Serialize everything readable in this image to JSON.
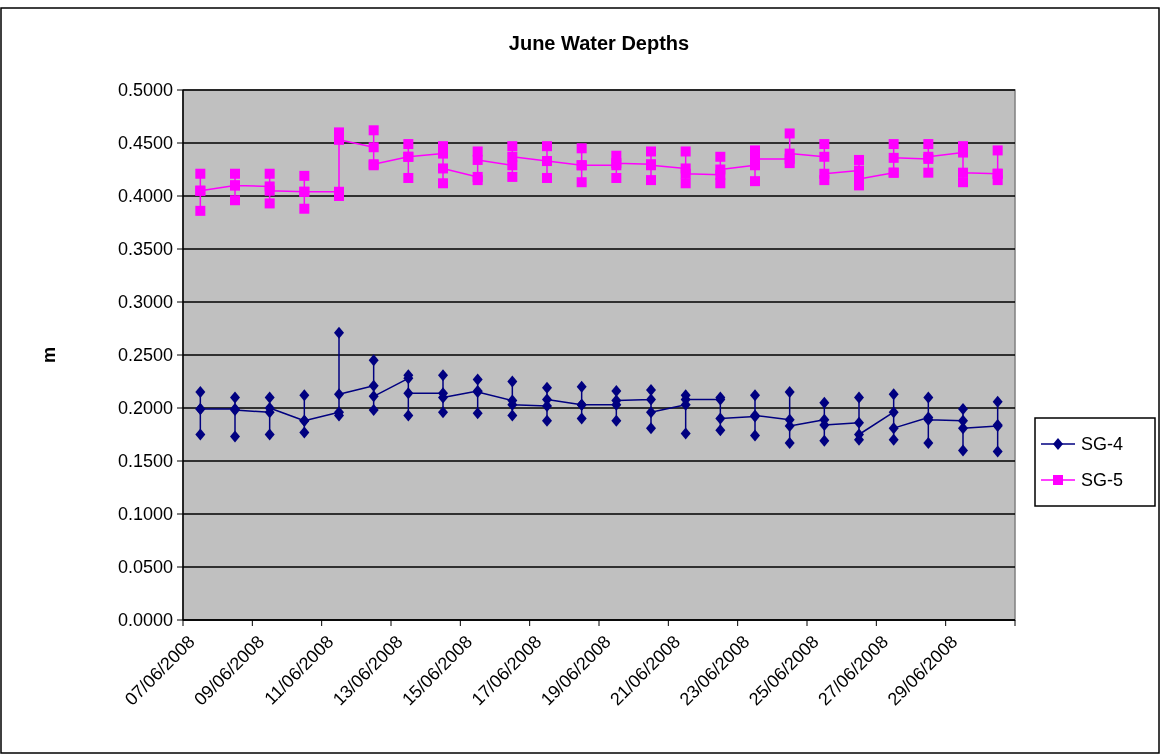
{
  "chart_data": {
    "type": "line",
    "title": "June Water Depths",
    "ylabel": "m",
    "xlim": [
      "2008-06-07",
      "2008-07-01"
    ],
    "xticks": [
      {
        "value": "2008-06-07",
        "label": "07/06/2008"
      },
      {
        "value": "2008-06-09",
        "label": "09/06/2008"
      },
      {
        "value": "2008-06-11",
        "label": "11/06/2008"
      },
      {
        "value": "2008-06-13",
        "label": "13/06/2008"
      },
      {
        "value": "2008-06-15",
        "label": "15/06/2008"
      },
      {
        "value": "2008-06-17",
        "label": "17/06/2008"
      },
      {
        "value": "2008-06-19",
        "label": "19/06/2008"
      },
      {
        "value": "2008-06-21",
        "label": "21/06/2008"
      },
      {
        "value": "2008-06-23",
        "label": "23/06/2008"
      },
      {
        "value": "2008-06-25",
        "label": "25/06/2008"
      },
      {
        "value": "2008-06-27",
        "label": "27/06/2008"
      },
      {
        "value": "2008-06-29",
        "label": "29/06/2008"
      },
      {
        "value": "2008-07-01",
        "label": null
      }
    ],
    "ylim": [
      0,
      0.5
    ],
    "yticks": [
      {
        "value": 0,
        "label": "0.0000"
      },
      {
        "value": 0.05,
        "label": "0.0500"
      },
      {
        "value": 0.1,
        "label": "0.1000"
      },
      {
        "value": 0.15,
        "label": "0.1500"
      },
      {
        "value": 0.2,
        "label": "0.2000"
      },
      {
        "value": 0.25,
        "label": "0.2500"
      },
      {
        "value": 0.3,
        "label": "0.3000"
      },
      {
        "value": 0.35,
        "label": "0.3500"
      },
      {
        "value": 0.4,
        "label": "0.4000"
      },
      {
        "value": 0.45,
        "label": "0.4500"
      },
      {
        "value": 0.5,
        "label": "0.5000"
      }
    ],
    "grid": "y",
    "legend": "right",
    "x": [
      "2008-06-07T12:00",
      "2008-06-07T12:00",
      "2008-06-07T12:00",
      "2008-06-07T12:00",
      "2008-06-08T12:00",
      "2008-06-08T12:00",
      "2008-06-08T12:00",
      "2008-06-08T12:00",
      "2008-06-09T12:00",
      "2008-06-09T12:00",
      "2008-06-09T12:00",
      "2008-06-09T12:00",
      "2008-06-10T12:00",
      "2008-06-10T12:00",
      "2008-06-10T12:00",
      "2008-06-10T12:00",
      "2008-06-11T12:00",
      "2008-06-11T12:00",
      "2008-06-11T12:00",
      "2008-06-11T12:00",
      "2008-06-12T12:00",
      "2008-06-12T12:00",
      "2008-06-12T12:00",
      "2008-06-12T12:00",
      "2008-06-13T12:00",
      "2008-06-13T12:00",
      "2008-06-13T12:00",
      "2008-06-13T12:00",
      "2008-06-14T12:00",
      "2008-06-14T12:00",
      "2008-06-14T12:00",
      "2008-06-14T12:00",
      "2008-06-15T12:00",
      "2008-06-15T12:00",
      "2008-06-15T12:00",
      "2008-06-15T12:00",
      "2008-06-16T12:00",
      "2008-06-16T12:00",
      "2008-06-16T12:00",
      "2008-06-16T12:00",
      "2008-06-17T12:00",
      "2008-06-17T12:00",
      "2008-06-17T12:00",
      "2008-06-17T12:00",
      "2008-06-18T12:00",
      "2008-06-18T12:00",
      "2008-06-18T12:00",
      "2008-06-18T12:00",
      "2008-06-19T12:00",
      "2008-06-19T12:00",
      "2008-06-19T12:00",
      "2008-06-19T12:00",
      "2008-06-20T12:00",
      "2008-06-20T12:00",
      "2008-06-20T12:00",
      "2008-06-20T12:00",
      "2008-06-21T12:00",
      "2008-06-21T12:00",
      "2008-06-21T12:00",
      "2008-06-21T12:00",
      "2008-06-22T12:00",
      "2008-06-22T12:00",
      "2008-06-22T12:00",
      "2008-06-22T12:00",
      "2008-06-23T12:00",
      "2008-06-23T12:00",
      "2008-06-23T12:00",
      "2008-06-23T12:00",
      "2008-06-24T12:00",
      "2008-06-24T12:00",
      "2008-06-24T12:00",
      "2008-06-24T12:00",
      "2008-06-25T12:00",
      "2008-06-25T12:00",
      "2008-06-25T12:00",
      "2008-06-25T12:00",
      "2008-06-26T12:00",
      "2008-06-26T12:00",
      "2008-06-26T12:00",
      "2008-06-26T12:00",
      "2008-06-27T12:00",
      "2008-06-27T12:00",
      "2008-06-27T12:00",
      "2008-06-27T12:00",
      "2008-06-28T12:00",
      "2008-06-28T12:00",
      "2008-06-28T12:00",
      "2008-06-28T12:00",
      "2008-06-29T12:00",
      "2008-06-29T12:00",
      "2008-06-29T12:00",
      "2008-06-29T12:00",
      "2008-06-30T12:00",
      "2008-06-30T12:00",
      "2008-06-30T12:00",
      "2008-06-30T12:00"
    ],
    "series": [
      {
        "name": "SG-4",
        "color": "#000080",
        "marker": "diamond",
        "values": [
          0.199,
          0.215,
          0.175,
          0.199,
          0.199,
          0.21,
          0.173,
          0.198,
          0.196,
          0.21,
          0.175,
          0.2,
          0.188,
          0.212,
          0.177,
          0.188,
          0.196,
          0.271,
          0.193,
          0.213,
          0.221,
          0.245,
          0.198,
          0.211,
          0.228,
          0.231,
          0.193,
          0.214,
          0.214,
          0.231,
          0.196,
          0.21,
          0.216,
          0.227,
          0.195,
          0.215,
          0.207,
          0.225,
          0.193,
          0.203,
          0.202,
          0.219,
          0.188,
          0.208,
          0.203,
          0.22,
          0.19,
          0.203,
          0.203,
          0.216,
          0.188,
          0.207,
          0.208,
          0.217,
          0.181,
          0.196,
          0.203,
          0.212,
          0.176,
          0.208,
          0.208,
          0.21,
          0.179,
          0.19,
          0.192,
          0.212,
          0.174,
          0.193,
          0.189,
          0.215,
          0.167,
          0.183,
          0.189,
          0.205,
          0.169,
          0.184,
          0.186,
          0.21,
          0.17,
          0.175,
          0.196,
          0.213,
          0.17,
          0.181,
          0.191,
          0.21,
          0.167,
          0.189,
          0.188,
          0.199,
          0.16,
          0.181,
          0.183,
          0.206,
          0.159,
          0.184
        ]
      },
      {
        "name": "SG-5",
        "color": "#ff00ff",
        "marker": "square",
        "values": [
          0.405,
          0.421,
          0.386,
          0.405,
          0.41,
          0.421,
          0.396,
          0.41,
          0.409,
          0.421,
          0.393,
          0.405,
          0.404,
          0.419,
          0.388,
          0.404,
          0.404,
          0.46,
          0.4,
          0.453,
          0.446,
          0.462,
          0.429,
          0.43,
          0.437,
          0.449,
          0.417,
          0.437,
          0.44,
          0.447,
          0.412,
          0.426,
          0.418,
          0.442,
          0.415,
          0.434,
          0.429,
          0.447,
          0.418,
          0.437,
          0.433,
          0.447,
          0.417,
          0.433,
          0.429,
          0.445,
          0.413,
          0.429,
          0.429,
          0.438,
          0.417,
          0.431,
          0.43,
          0.442,
          0.415,
          0.429,
          0.426,
          0.442,
          0.412,
          0.421,
          0.42,
          0.437,
          0.412,
          0.425,
          0.429,
          0.443,
          0.414,
          0.435,
          0.435,
          0.459,
          0.431,
          0.44,
          0.437,
          0.449,
          0.415,
          0.421,
          0.424,
          0.434,
          0.41,
          0.416,
          0.422,
          0.449,
          0.422,
          0.436,
          0.435,
          0.449,
          0.422,
          0.437,
          0.441,
          0.447,
          0.413,
          0.422,
          0.421,
          0.443,
          0.415,
          0.421
        ]
      }
    ]
  }
}
